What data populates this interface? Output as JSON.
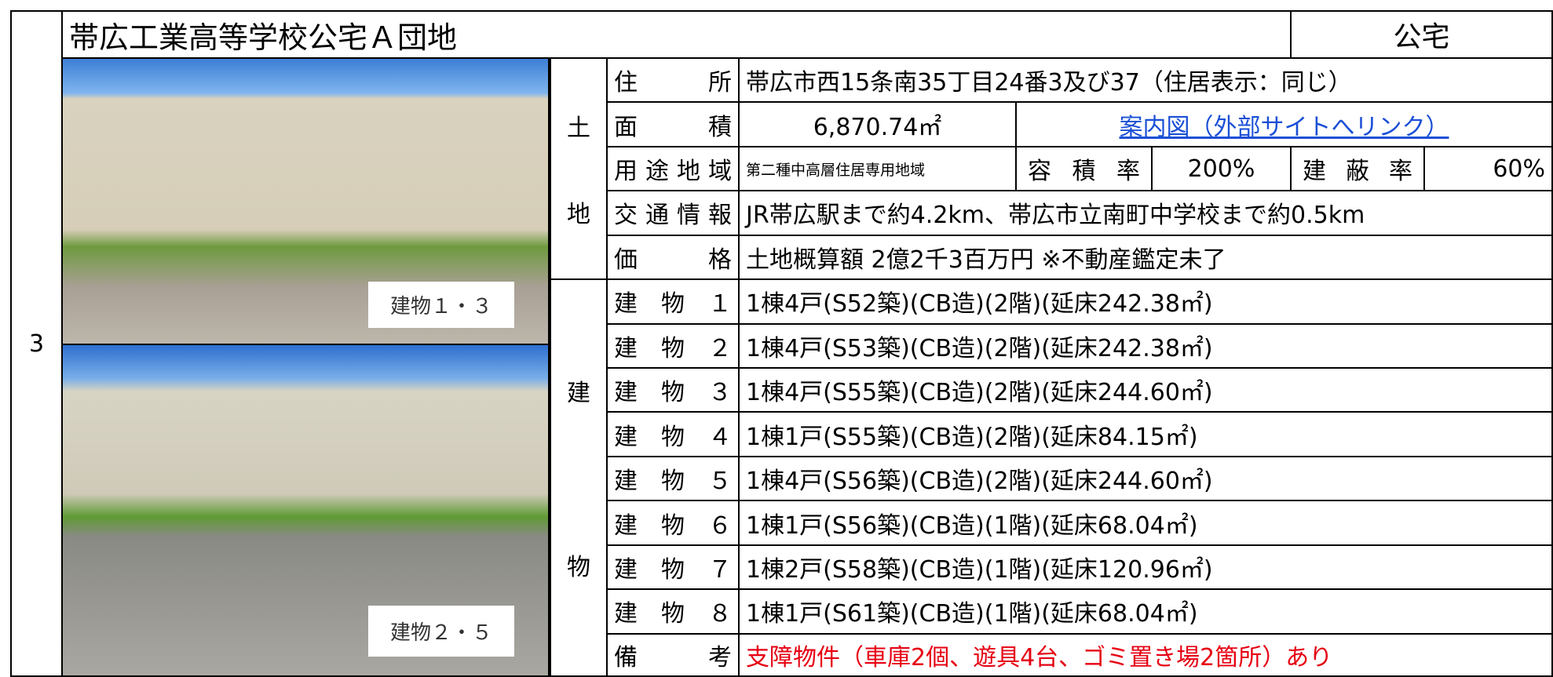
{
  "row_number": "3",
  "title": "帯広工業高等学校公宅Ａ団地",
  "category": "公宅",
  "photos": [
    {
      "label": "建物１・３"
    },
    {
      "label": "建物２・５"
    }
  ],
  "land": {
    "heading": [
      "土",
      "地"
    ],
    "address": {
      "label": "住所",
      "value": "帯広市西15条南35丁目24番3及び37（住居表示：同じ）"
    },
    "area": {
      "label": "面積",
      "value": "6,870.74㎡",
      "link": "案内図（外部サイトへリンク）"
    },
    "zoning": {
      "label": "用途地域",
      "value": "第二種中高層住居専用地域",
      "far_label": "容積率",
      "far": "200%",
      "bcr_label": "建蔽率",
      "bcr": "60%"
    },
    "transport": {
      "label": "交通情報",
      "value": "JR帯広駅まで約4.2km、帯広市立南町中学校まで約0.5km"
    },
    "price": {
      "label": "価格",
      "value": "土地概算額 2億2千3百万円 ※不動産鑑定未了"
    }
  },
  "building": {
    "heading": [
      "建",
      "物"
    ],
    "rows": [
      {
        "label": "建物１",
        "value": "1棟4戸(S52築)(CB造)(2階)(延床242.38㎡)"
      },
      {
        "label": "建物２",
        "value": "1棟4戸(S53築)(CB造)(2階)(延床242.38㎡)"
      },
      {
        "label": "建物３",
        "value": "1棟4戸(S55築)(CB造)(2階)(延床244.60㎡)"
      },
      {
        "label": "建物４",
        "value": "1棟1戸(S55築)(CB造)(2階)(延床84.15㎡)"
      },
      {
        "label": "建物５",
        "value": "1棟4戸(S56築)(CB造)(2階)(延床244.60㎡)"
      },
      {
        "label": "建物６",
        "value": "1棟1戸(S56築)(CB造)(1階)(延床68.04㎡)"
      },
      {
        "label": "建物７",
        "value": "1棟2戸(S58築)(CB造)(1階)(延床120.96㎡)"
      },
      {
        "label": "建物８",
        "value": "1棟1戸(S61築)(CB造)(1階)(延床68.04㎡)"
      }
    ],
    "remarks": {
      "label": "備考",
      "value": "支障物件（車庫2個、遊具4台、ゴミ置き場2箇所）あり"
    }
  }
}
